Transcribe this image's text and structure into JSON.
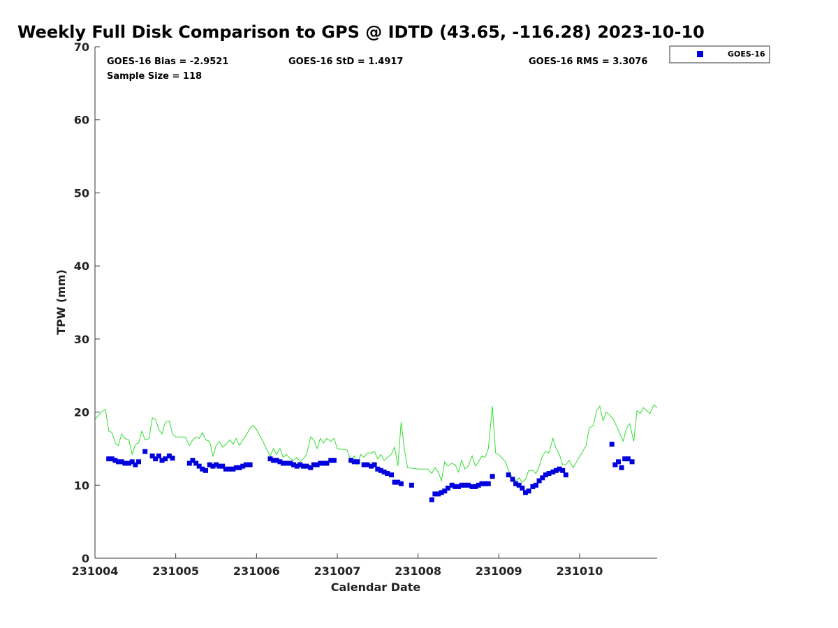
{
  "chart_data": {
    "type": "scatter",
    "title": "Weekly Full Disk Comparison to GPS @ IDTD (43.65, -116.28) 2023-10-10",
    "xlabel": "Calendar Date",
    "ylabel": "TPW (mm)",
    "xlim": [
      231004.0,
      231010.96
    ],
    "ylim": [
      0,
      70
    ],
    "x_ticks": [
      "231004",
      "231005",
      "231006",
      "231007",
      "231008",
      "231009",
      "231010"
    ],
    "y_ticks": [
      0,
      10,
      20,
      30,
      40,
      50,
      60,
      70
    ],
    "grid": false,
    "legend_position": "top-right",
    "stats": {
      "bias": "GOES-16 Bias = -2.9521",
      "std": "GOES-16 StD = 1.4917",
      "rms": "GOES-16 RMS = 3.3076",
      "sample": "Sample Size = 118"
    },
    "colors": {
      "goes16": "#0000dd",
      "gps": "#33dd33"
    },
    "series": [
      {
        "name": "GOES-16",
        "kind": "points",
        "x": [
          231004.17,
          231004.21,
          231004.25,
          231004.29,
          231004.33,
          231004.37,
          231004.42,
          231004.46,
          231004.5,
          231004.54,
          231004.62,
          231004.71,
          231004.75,
          231004.79,
          231004.83,
          231004.87,
          231004.92,
          231004.96,
          231005.17,
          231005.21,
          231005.25,
          231005.29,
          231005.33,
          231005.37,
          231005.42,
          231005.46,
          231005.5,
          231005.54,
          231005.58,
          231005.62,
          231005.67,
          231005.71,
          231005.75,
          231005.79,
          231005.83,
          231005.87,
          231005.92,
          231006.17,
          231006.21,
          231006.25,
          231006.29,
          231006.33,
          231006.37,
          231006.42,
          231006.46,
          231006.5,
          231006.54,
          231006.58,
          231006.62,
          231006.67,
          231006.71,
          231006.75,
          231006.79,
          231006.83,
          231006.87,
          231006.92,
          231006.96,
          231007.17,
          231007.21,
          231007.25,
          231007.33,
          231007.37,
          231007.42,
          231007.46,
          231007.5,
          231007.54,
          231007.58,
          231007.62,
          231007.67,
          231007.71,
          231007.75,
          231007.79,
          231007.92,
          231008.17,
          231008.21,
          231008.25,
          231008.29,
          231008.33,
          231008.37,
          231008.42,
          231008.46,
          231008.5,
          231008.54,
          231008.58,
          231008.62,
          231008.67,
          231008.71,
          231008.75,
          231008.79,
          231008.83,
          231008.87,
          231008.92,
          231009.12,
          231009.17,
          231009.21,
          231009.25,
          231009.29,
          231009.33,
          231009.37,
          231009.42,
          231009.46,
          231009.5,
          231009.54,
          231009.58,
          231009.62,
          231009.67,
          231009.71,
          231009.75,
          231009.79,
          231009.83,
          231010.4,
          231010.44,
          231010.48,
          231010.52,
          231010.56,
          231010.6,
          231010.65
        ],
        "y": [
          13.6,
          13.6,
          13.4,
          13.2,
          13.2,
          13.0,
          13.0,
          13.2,
          12.8,
          13.2,
          14.6,
          14.0,
          13.6,
          14.0,
          13.4,
          13.6,
          14.0,
          13.7,
          13.0,
          13.4,
          13.0,
          12.6,
          12.2,
          12.0,
          12.8,
          12.6,
          12.8,
          12.6,
          12.6,
          12.2,
          12.2,
          12.2,
          12.4,
          12.4,
          12.6,
          12.8,
          12.8,
          13.6,
          13.4,
          13.4,
          13.2,
          13.0,
          13.0,
          13.0,
          12.8,
          12.6,
          12.8,
          12.6,
          12.6,
          12.4,
          12.8,
          12.8,
          13.0,
          13.0,
          13.0,
          13.4,
          13.4,
          13.4,
          13.2,
          13.2,
          12.8,
          12.8,
          12.6,
          12.8,
          12.2,
          12.0,
          11.8,
          11.6,
          11.4,
          10.4,
          10.4,
          10.2,
          10.0,
          8.0,
          8.8,
          8.8,
          9.0,
          9.2,
          9.6,
          10.0,
          9.8,
          9.8,
          10.0,
          10.0,
          10.0,
          9.8,
          9.8,
          10.0,
          10.2,
          10.2,
          10.2,
          11.2,
          11.4,
          10.8,
          10.2,
          10.0,
          9.6,
          9.0,
          9.2,
          9.8,
          10.0,
          10.6,
          11.0,
          11.4,
          11.6,
          11.8,
          12.0,
          12.2,
          12.0,
          11.4,
          15.6,
          12.8,
          13.2,
          12.4,
          13.6,
          13.6,
          13.2
        ]
      },
      {
        "name": "",
        "kind": "line",
        "x": [
          231004.0,
          231004.08,
          231004.13,
          231004.17,
          231004.21,
          231004.25,
          231004.29,
          231004.33,
          231004.37,
          231004.42,
          231004.46,
          231004.5,
          231004.54,
          231004.58,
          231004.62,
          231004.67,
          231004.71,
          231004.75,
          231004.79,
          231004.83,
          231004.87,
          231004.92,
          231004.96,
          231005.0,
          231005.12,
          231005.17,
          231005.21,
          231005.25,
          231005.29,
          231005.33,
          231005.37,
          231005.42,
          231005.46,
          231005.5,
          231005.54,
          231005.58,
          231005.62,
          231005.67,
          231005.71,
          231005.75,
          231005.79,
          231005.83,
          231005.87,
          231005.92,
          231005.96,
          231006.0,
          231006.04,
          231006.08,
          231006.12,
          231006.17,
          231006.21,
          231006.25,
          231006.29,
          231006.33,
          231006.37,
          231006.42,
          231006.46,
          231006.5,
          231006.54,
          231006.58,
          231006.62,
          231006.67,
          231006.71,
          231006.75,
          231006.79,
          231006.83,
          231006.87,
          231006.92,
          231006.96,
          231007.0,
          231007.12,
          231007.17,
          231007.21,
          231007.25,
          231007.29,
          231007.33,
          231007.37,
          231007.42,
          231007.46,
          231007.5,
          231007.54,
          231007.58,
          231007.62,
          231007.67,
          231007.71,
          231007.75,
          231007.79,
          231007.83,
          231007.87,
          231008.0,
          231008.12,
          231008.17,
          231008.21,
          231008.25,
          231008.29,
          231008.33,
          231008.37,
          231008.42,
          231008.46,
          231008.5,
          231008.54,
          231008.58,
          231008.62,
          231008.67,
          231008.71,
          231008.75,
          231008.79,
          231008.83,
          231008.87,
          231008.92,
          231008.96,
          231009.0,
          231009.08,
          231009.12,
          231009.17,
          231009.21,
          231009.25,
          231009.29,
          231009.33,
          231009.37,
          231009.42,
          231009.46,
          231009.5,
          231009.54,
          231009.58,
          231009.62,
          231009.67,
          231009.71,
          231009.75,
          231009.79,
          231009.83,
          231009.87,
          231009.92,
          231010.08,
          231010.12,
          231010.17,
          231010.21,
          231010.25,
          231010.29,
          231010.33,
          231010.37,
          231010.42,
          231010.5,
          231010.54,
          231010.58,
          231010.62,
          231010.67,
          231010.71,
          231010.75,
          231010.79,
          231010.83,
          231010.87,
          231010.92,
          231010.96
        ],
        "y": [
          19.0,
          20.0,
          20.4,
          17.4,
          17.2,
          15.8,
          15.4,
          17.0,
          16.4,
          16.2,
          14.2,
          15.6,
          15.8,
          17.4,
          16.2,
          16.4,
          19.2,
          19.0,
          17.6,
          17.0,
          18.6,
          18.8,
          17.0,
          16.6,
          16.6,
          15.4,
          16.2,
          16.6,
          16.4,
          17.2,
          16.2,
          16.0,
          14.0,
          15.4,
          16.0,
          15.2,
          15.6,
          16.2,
          15.6,
          16.4,
          15.4,
          16.2,
          16.8,
          17.8,
          18.2,
          17.6,
          16.8,
          16.0,
          15.0,
          14.0,
          15.0,
          14.2,
          15.0,
          13.8,
          14.2,
          13.6,
          13.4,
          13.8,
          13.2,
          13.6,
          14.2,
          16.6,
          16.2,
          15.0,
          16.4,
          15.8,
          16.4,
          16.0,
          16.4,
          15.0,
          14.8,
          13.4,
          14.0,
          12.8,
          14.2,
          13.8,
          14.4,
          14.4,
          14.6,
          13.6,
          14.2,
          13.4,
          13.8,
          14.2,
          15.2,
          12.6,
          18.6,
          15.0,
          12.4,
          12.2,
          12.2,
          11.6,
          12.4,
          11.8,
          10.6,
          13.2,
          12.6,
          13.0,
          12.8,
          11.8,
          13.4,
          12.2,
          12.6,
          14.0,
          12.6,
          13.2,
          14.0,
          13.8,
          15.0,
          20.8,
          14.4,
          14.2,
          13.2,
          12.0,
          11.0,
          10.6,
          11.0,
          10.4,
          10.8,
          12.0,
          12.0,
          11.6,
          12.6,
          14.0,
          14.6,
          14.4,
          16.4,
          15.0,
          14.2,
          12.8,
          12.8,
          13.4,
          12.4,
          15.4,
          17.8,
          18.2,
          20.2,
          20.8,
          18.8,
          20.0,
          19.6,
          19.0,
          17.0,
          16.0,
          17.8,
          18.4,
          16.0,
          20.2,
          19.8,
          20.6,
          20.2,
          19.8,
          21.0,
          20.6
        ]
      }
    ]
  }
}
